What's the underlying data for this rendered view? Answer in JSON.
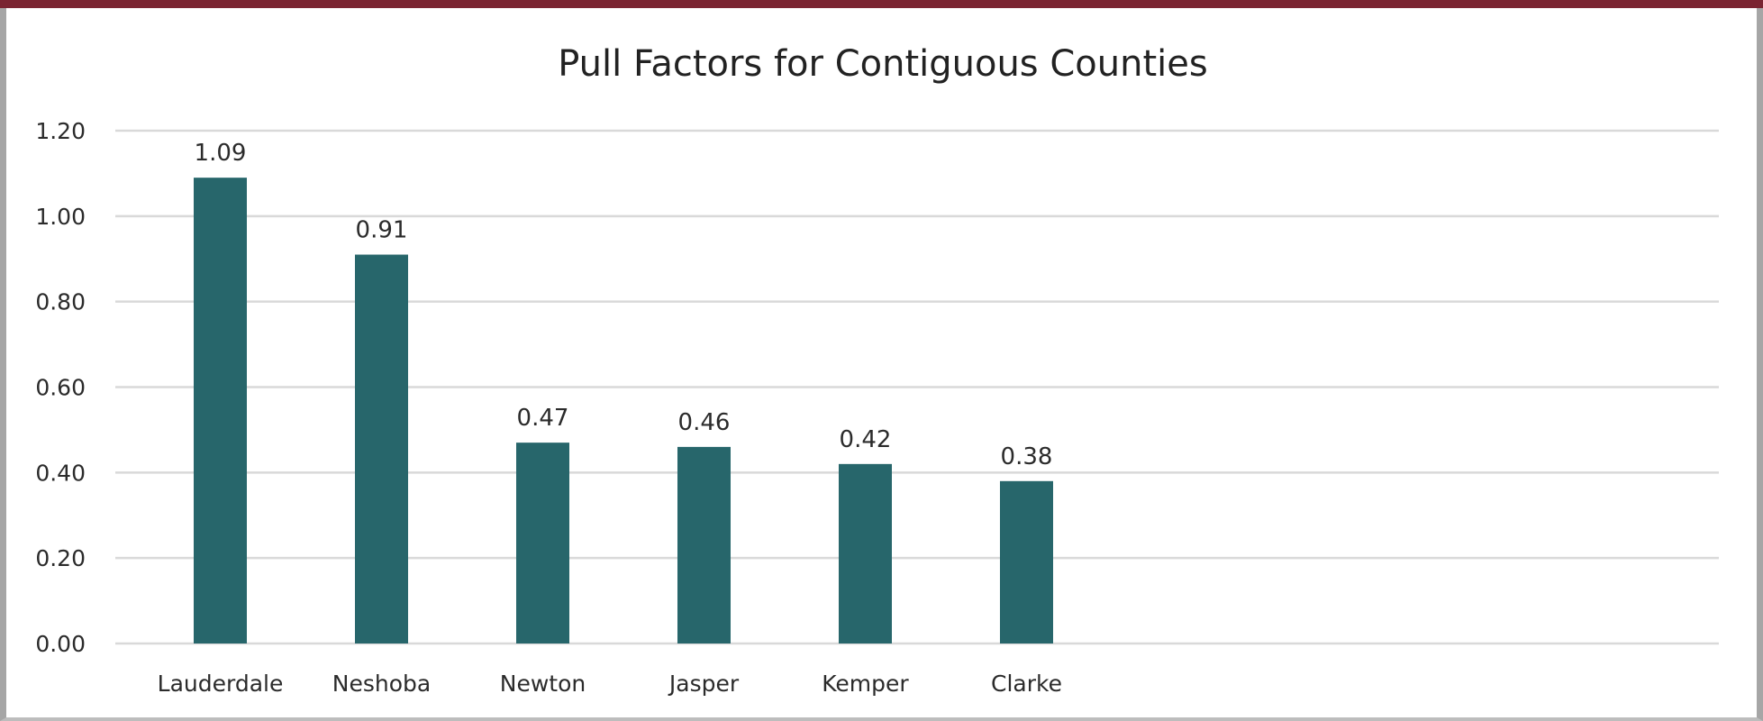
{
  "colors": {
    "bar": "#27666b",
    "gridline": "#d9d9d9",
    "top_bar": "#7a2431"
  },
  "chart_data": {
    "type": "bar",
    "title": "Pull Factors for Contiguous Counties",
    "xlabel": "",
    "ylabel": "",
    "categories": [
      "Lauderdale",
      "Neshoba",
      "Newton",
      "Jasper",
      "Kemper",
      "Clarke"
    ],
    "values": [
      1.09,
      0.91,
      0.47,
      0.46,
      0.42,
      0.38
    ],
    "data_labels": [
      "1.09",
      "0.91",
      "0.47",
      "0.46",
      "0.42",
      "0.38"
    ],
    "ylim": [
      0,
      1.2
    ],
    "yticks": [
      0,
      0.2,
      0.4,
      0.6,
      0.8,
      1.0,
      1.2
    ],
    "ytick_labels": [
      "0.00",
      "0.20",
      "0.40",
      "0.60",
      "0.80",
      "1.00",
      "1.20"
    ],
    "grid": true,
    "legend": "none"
  }
}
